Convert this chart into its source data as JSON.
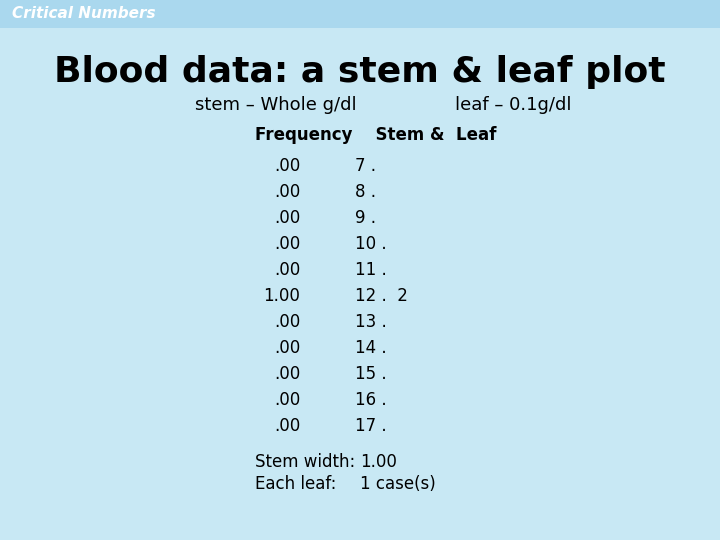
{
  "title": "Blood data: a stem & leaf plot",
  "subtitle_left": "stem – Whole g/dl",
  "subtitle_right": "leaf – 0.1g/dl",
  "header_label": "Frequency    Stem &  Leaf",
  "rows": [
    [
      ".00",
      "7 ."
    ],
    [
      ".00",
      "8 ."
    ],
    [
      ".00",
      "9 ."
    ],
    [
      ".00",
      "10 ."
    ],
    [
      ".00",
      "11 ."
    ],
    [
      "1.00",
      "12 .  2"
    ],
    [
      ".00",
      "13 ."
    ],
    [
      ".00",
      "14 ."
    ],
    [
      ".00",
      "15 ."
    ],
    [
      ".00",
      "16 ."
    ],
    [
      ".00",
      "17 ."
    ]
  ],
  "footer1_label": "Stem width:",
  "footer1_value": "1.00",
  "footer2_label": "Each leaf:",
  "footer2_value": "1 case(s)",
  "bg_color": "#c8e8f4",
  "banner_color": "#aad8ee",
  "banner_text": "Critical Numbers",
  "banner_text_color": "#ffffff",
  "title_color": "#000000",
  "body_bg": "#ddeef8"
}
